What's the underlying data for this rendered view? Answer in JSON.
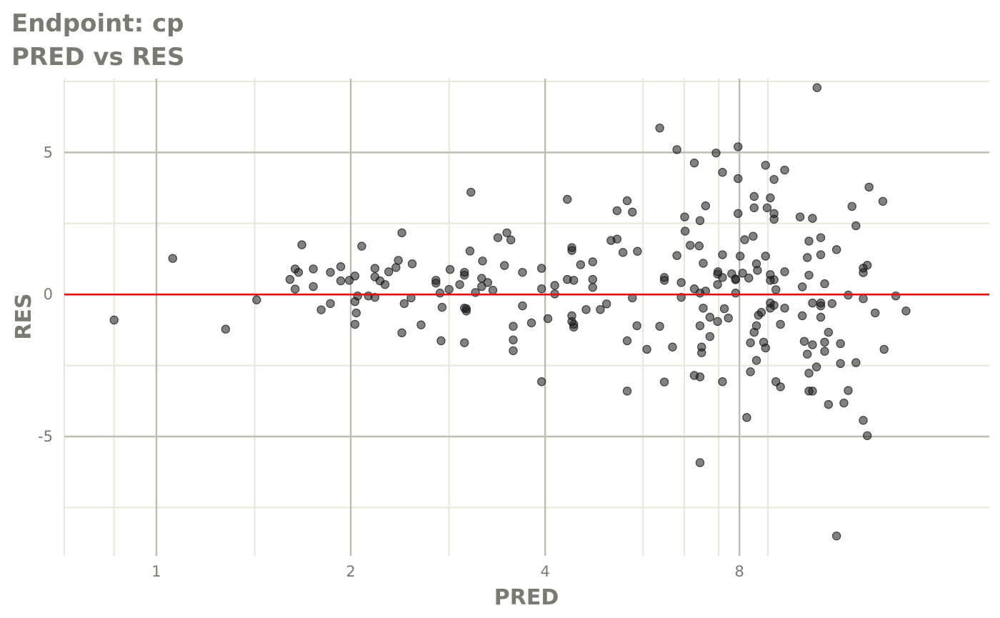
{
  "title_line1": "Endpoint:  cp",
  "title_line2": "PRED vs RES",
  "colors": {
    "background": "#ffffff",
    "grid_major": "#bdbdb2",
    "grid_minor": "#e8e8dc",
    "point": "#1a1a1a",
    "reference_line": "#dd1111",
    "text": "#7a7a72"
  },
  "chart_data": {
    "type": "scatter",
    "title": "Endpoint:  cp\nPRED vs RES",
    "xlabel": "PRED",
    "ylabel": "RES",
    "x_scale": "log2",
    "xlim": [
      0.72,
      19.5
    ],
    "ylim": [
      -9.2,
      7.6
    ],
    "x_major_ticks": [
      1,
      2,
      4,
      8
    ],
    "x_tick_labels": [
      "1",
      "2",
      "4",
      "8"
    ],
    "x_minor_ticks": [
      0.72,
      0.86,
      1.42,
      2.84,
      5.67,
      6.57,
      7.43,
      8.85
    ],
    "y_major_ticks": [
      -5,
      0,
      5
    ],
    "y_tick_labels": [
      "-5",
      "0",
      "5"
    ],
    "y_minor_ticks": [
      -7.5,
      -2.5,
      2.5,
      7.5
    ],
    "reference_line": {
      "y": 0
    },
    "grid": true,
    "legend": "none",
    "series": [
      {
        "points": [
          [
            0.86,
            -0.9
          ],
          [
            1.06,
            1.27
          ],
          [
            1.28,
            -1.22
          ],
          [
            1.43,
            -0.19
          ],
          [
            1.61,
            0.53
          ],
          [
            1.64,
            0.9
          ],
          [
            1.64,
            0.19
          ],
          [
            1.66,
            0.78
          ],
          [
            1.68,
            1.75
          ],
          [
            1.75,
            0.9
          ],
          [
            1.75,
            0.28
          ],
          [
            1.8,
            -0.54
          ],
          [
            1.86,
            0.78
          ],
          [
            1.86,
            -0.32
          ],
          [
            1.93,
            0.98
          ],
          [
            1.93,
            0.48
          ],
          [
            1.99,
            0.5
          ],
          [
            2.03,
            -0.25
          ],
          [
            2.03,
            -1.05
          ],
          [
            2.03,
            0.65
          ],
          [
            2.04,
            -0.65
          ],
          [
            2.05,
            -0.05
          ],
          [
            2.08,
            1.7
          ],
          [
            2.13,
            -0.05
          ],
          [
            2.18,
            0.62
          ],
          [
            2.18,
            0.92
          ],
          [
            2.18,
            -0.1
          ],
          [
            2.22,
            0.48
          ],
          [
            2.26,
            0.35
          ],
          [
            2.29,
            0.8
          ],
          [
            2.35,
            0.95
          ],
          [
            2.37,
            1.2
          ],
          [
            2.4,
            2.17
          ],
          [
            2.42,
            -0.32
          ],
          [
            2.4,
            -1.35
          ],
          [
            2.48,
            -0.12
          ],
          [
            2.49,
            1.08
          ],
          [
            2.57,
            -1.07
          ],
          [
            2.71,
            0.5
          ],
          [
            2.71,
            0.4
          ],
          [
            2.75,
            0.05
          ],
          [
            2.76,
            -1.63
          ],
          [
            2.77,
            -0.45
          ],
          [
            2.84,
            0.18
          ],
          [
            2.85,
            0.88
          ],
          [
            2.95,
            0.35
          ],
          [
            3.0,
            0.68
          ],
          [
            3.0,
            0.78
          ],
          [
            3.0,
            -0.48
          ],
          [
            3.0,
            -1.7
          ],
          [
            3.02,
            -0.58
          ],
          [
            3.02,
            -0.5
          ],
          [
            3.06,
            1.53
          ],
          [
            3.07,
            3.6
          ],
          [
            3.12,
            0.07
          ],
          [
            3.19,
            0.57
          ],
          [
            3.19,
            0.28
          ],
          [
            3.2,
            1.18
          ],
          [
            3.26,
            0.42
          ],
          [
            3.32,
            0.15
          ],
          [
            3.38,
            2.0
          ],
          [
            3.49,
            2.17
          ],
          [
            3.54,
            1.92
          ],
          [
            3.57,
            -1.12
          ],
          [
            3.57,
            -1.6
          ],
          [
            3.57,
            -1.98
          ],
          [
            3.46,
            1.02
          ],
          [
            3.69,
            -0.4
          ],
          [
            3.69,
            0.78
          ],
          [
            3.81,
            -1.0
          ],
          [
            3.95,
            0.92
          ],
          [
            3.95,
            0.2
          ],
          [
            3.95,
            -3.07
          ],
          [
            4.04,
            -0.85
          ],
          [
            4.14,
            0.32
          ],
          [
            4.14,
            0.02
          ],
          [
            4.33,
            3.35
          ],
          [
            4.33,
            0.53
          ],
          [
            4.4,
            1.65
          ],
          [
            4.4,
            1.55
          ],
          [
            4.4,
            -0.75
          ],
          [
            4.4,
            -0.95
          ],
          [
            4.43,
            -1.05
          ],
          [
            4.43,
            -1.15
          ],
          [
            4.43,
            0.5
          ],
          [
            4.54,
            1.05
          ],
          [
            4.63,
            -0.53
          ],
          [
            4.74,
            1.15
          ],
          [
            4.74,
            0.53
          ],
          [
            4.74,
            0.25
          ],
          [
            4.87,
            -0.53
          ],
          [
            4.98,
            -0.33
          ],
          [
            5.06,
            1.9
          ],
          [
            5.17,
            2.95
          ],
          [
            5.17,
            1.95
          ],
          [
            5.28,
            1.48
          ],
          [
            5.36,
            3.3
          ],
          [
            5.36,
            -1.63
          ],
          [
            5.36,
            -3.4
          ],
          [
            5.46,
            2.9
          ],
          [
            5.46,
            -0.12
          ],
          [
            5.55,
            -1.1
          ],
          [
            5.56,
            1.52
          ],
          [
            5.75,
            -1.93
          ],
          [
            6.02,
            5.86
          ],
          [
            6.02,
            -1.12
          ],
          [
            6.12,
            0.6
          ],
          [
            6.12,
            0.5
          ],
          [
            6.12,
            -3.08
          ],
          [
            6.3,
            -1.85
          ],
          [
            6.4,
            5.1
          ],
          [
            6.4,
            1.37
          ],
          [
            6.5,
            0.42
          ],
          [
            6.5,
            -0.1
          ],
          [
            6.58,
            2.73
          ],
          [
            6.59,
            2.23
          ],
          [
            6.71,
            1.73
          ],
          [
            6.81,
            4.63
          ],
          [
            6.81,
            0.2
          ],
          [
            6.81,
            -2.85
          ],
          [
            6.93,
            1.71
          ],
          [
            6.95,
            2.6
          ],
          [
            6.95,
            0.05
          ],
          [
            6.95,
            -1.1
          ],
          [
            6.99,
            -1.85
          ],
          [
            6.99,
            -2.05
          ],
          [
            6.95,
            -2.9
          ],
          [
            7.03,
            1.1
          ],
          [
            7.03,
            -0.48
          ],
          [
            7.09,
            0.12
          ],
          [
            7.09,
            3.12
          ],
          [
            6.95,
            -5.92
          ],
          [
            7.2,
            -0.8
          ],
          [
            7.2,
            -1.48
          ],
          [
            7.36,
            4.98
          ],
          [
            7.41,
            0.8
          ],
          [
            7.4,
            0.72
          ],
          [
            7.4,
            0.35
          ],
          [
            7.4,
            -0.95
          ],
          [
            7.53,
            4.3
          ],
          [
            7.53,
            1.4
          ],
          [
            7.53,
            0.6
          ],
          [
            7.53,
            -3.07
          ],
          [
            7.58,
            -0.5
          ],
          [
            7.69,
            -0.83
          ],
          [
            7.78,
            0.73
          ],
          [
            7.89,
            0.55
          ],
          [
            7.89,
            0.05
          ],
          [
            7.89,
            0.52
          ],
          [
            7.96,
            5.2
          ],
          [
            7.96,
            4.08
          ],
          [
            7.96,
            2.85
          ],
          [
            8.02,
            1.35
          ],
          [
            8.09,
            0.75
          ],
          [
            8.15,
            1.93
          ],
          [
            8.21,
            -4.33
          ],
          [
            8.27,
            0.58
          ],
          [
            8.32,
            -1.7
          ],
          [
            8.32,
            -2.72
          ],
          [
            8.4,
            2.05
          ],
          [
            8.43,
            3.45
          ],
          [
            8.43,
            3.05
          ],
          [
            8.43,
            -1.33
          ],
          [
            8.5,
            1.08
          ],
          [
            8.5,
            -1.1
          ],
          [
            8.5,
            -2.32
          ],
          [
            8.53,
            0.85
          ],
          [
            8.56,
            -0.73
          ],
          [
            8.65,
            -0.63
          ],
          [
            8.72,
            -1.68
          ],
          [
            8.78,
            -1.88
          ],
          [
            8.78,
            4.55
          ],
          [
            8.83,
            3.05
          ],
          [
            8.78,
            1.35
          ],
          [
            8.93,
            3.4
          ],
          [
            8.93,
            0.7
          ],
          [
            8.93,
            0.5
          ],
          [
            8.93,
            -0.3
          ],
          [
            8.93,
            -0.48
          ],
          [
            9.05,
            2.85
          ],
          [
            9.05,
            2.65
          ],
          [
            9.05,
            4.05
          ],
          [
            9.05,
            0.52
          ],
          [
            9.05,
            -0.38
          ],
          [
            9.11,
            -3.07
          ],
          [
            9.11,
            0.17
          ],
          [
            9.26,
            -1.05
          ],
          [
            9.26,
            -3.25
          ],
          [
            9.4,
            -0.48
          ],
          [
            9.4,
            4.38
          ],
          [
            9.4,
            0.8
          ],
          [
            9.93,
            2.73
          ],
          [
            10.01,
            -0.75
          ],
          [
            10.01,
            0.27
          ],
          [
            10.08,
            -1.65
          ],
          [
            10.19,
            1.3
          ],
          [
            10.19,
            -2.1
          ],
          [
            10.25,
            0.68
          ],
          [
            10.25,
            -2.77
          ],
          [
            10.25,
            -3.4
          ],
          [
            10.25,
            1.88
          ],
          [
            10.38,
            2.68
          ],
          [
            10.38,
            -1.77
          ],
          [
            10.38,
            -0.3
          ],
          [
            10.38,
            -3.4
          ],
          [
            10.53,
            -2.55
          ],
          [
            10.69,
            2.0
          ],
          [
            10.69,
            -0.3
          ],
          [
            10.69,
            -0.4
          ],
          [
            10.69,
            -0.8
          ],
          [
            10.69,
            1.4
          ],
          [
            10.84,
            -2.0
          ],
          [
            10.84,
            0.38
          ],
          [
            10.84,
            -1.68
          ],
          [
            10.99,
            -1.33
          ],
          [
            10.99,
            -3.87
          ],
          [
            10.55,
            7.28
          ],
          [
            11.31,
            1.58
          ],
          [
            11.13,
            -0.32
          ],
          [
            11.31,
            -8.5
          ],
          [
            11.47,
            -1.73
          ],
          [
            11.47,
            -2.43
          ],
          [
            11.61,
            -3.82
          ],
          [
            11.79,
            -0.02
          ],
          [
            11.79,
            -3.38
          ],
          [
            11.95,
            3.1
          ],
          [
            12.12,
            2.42
          ],
          [
            12.12,
            -2.4
          ],
          [
            12.44,
            0.77
          ],
          [
            12.44,
            0.93
          ],
          [
            12.44,
            -4.43
          ],
          [
            12.44,
            -0.15
          ],
          [
            12.62,
            1.03
          ],
          [
            12.62,
            -4.97
          ],
          [
            12.7,
            3.78
          ],
          [
            12.98,
            -0.65
          ],
          [
            13.34,
            3.28
          ],
          [
            13.4,
            -1.93
          ],
          [
            13.97,
            -0.05
          ],
          [
            14.49,
            -0.58
          ]
        ]
      }
    ]
  }
}
